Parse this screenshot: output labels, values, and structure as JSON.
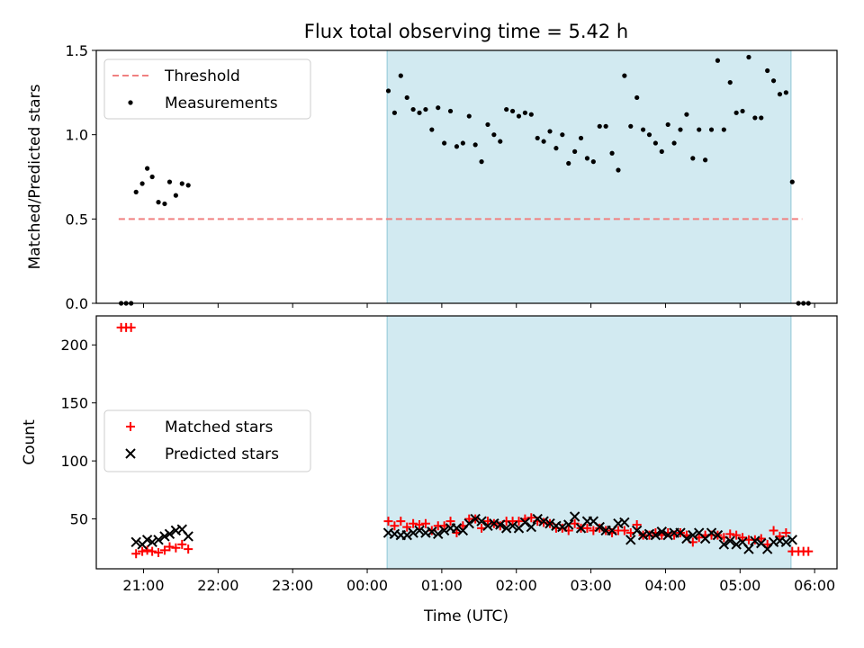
{
  "figure": {
    "title": "Flux total observing time = 5.42 h",
    "x_label": "Time (UTC)",
    "x_ticks": [
      "21:00",
      "22:00",
      "23:00",
      "00:00",
      "01:00",
      "02:00",
      "03:00",
      "04:00",
      "05:00",
      "06:00"
    ],
    "observing_window": {
      "start": "00:16",
      "end": "05:41",
      "color": "#add8e6"
    }
  },
  "chart_data": [
    {
      "type": "scatter",
      "ylabel": "Matched/Predicted stars",
      "ylim": [
        0,
        1.5
      ],
      "y_ticks": [
        "0.0",
        "0.5",
        "1.0",
        "1.5"
      ],
      "grid": false,
      "legend": "top-left",
      "threshold": {
        "name": "Threshold",
        "value": 0.5,
        "x_range": [
          "20:40",
          "05:50"
        ],
        "color": "#f08080",
        "style": "dashed"
      },
      "series": [
        {
          "name": "Measurements",
          "marker": "dot",
          "color": "#000000",
          "points": [
            [
              "20:42",
              0
            ],
            [
              "20:46",
              0
            ],
            [
              "20:50",
              0
            ],
            [
              "20:54",
              0.66
            ],
            [
              "20:59",
              0.71
            ],
            [
              "21:03",
              0.8
            ],
            [
              "21:07",
              0.75
            ],
            [
              "21:12",
              0.6
            ],
            [
              "21:17",
              0.59
            ],
            [
              "21:21",
              0.72
            ],
            [
              "21:26",
              0.64
            ],
            [
              "21:31",
              0.71
            ],
            [
              "21:36",
              0.7
            ],
            [
              "00:17",
              1.26
            ],
            [
              "00:22",
              1.13
            ],
            [
              "00:27",
              1.35
            ],
            [
              "00:32",
              1.22
            ],
            [
              "00:37",
              1.15
            ],
            [
              "00:42",
              1.13
            ],
            [
              "00:47",
              1.15
            ],
            [
              "00:52",
              1.03
            ],
            [
              "00:57",
              1.16
            ],
            [
              "01:02",
              0.95
            ],
            [
              "01:07",
              1.14
            ],
            [
              "01:12",
              0.93
            ],
            [
              "01:17",
              0.95
            ],
            [
              "01:22",
              1.11
            ],
            [
              "01:27",
              0.94
            ],
            [
              "01:32",
              0.84
            ],
            [
              "01:37",
              1.06
            ],
            [
              "01:42",
              1.0
            ],
            [
              "01:47",
              0.96
            ],
            [
              "01:52",
              1.15
            ],
            [
              "01:57",
              1.14
            ],
            [
              "02:02",
              1.11
            ],
            [
              "02:07",
              1.13
            ],
            [
              "02:12",
              1.12
            ],
            [
              "02:17",
              0.98
            ],
            [
              "02:22",
              0.96
            ],
            [
              "02:27",
              1.02
            ],
            [
              "02:32",
              0.92
            ],
            [
              "02:37",
              1.0
            ],
            [
              "02:42",
              0.83
            ],
            [
              "02:47",
              0.9
            ],
            [
              "02:52",
              0.98
            ],
            [
              "02:57",
              0.86
            ],
            [
              "03:02",
              0.84
            ],
            [
              "03:07",
              1.05
            ],
            [
              "03:12",
              1.05
            ],
            [
              "03:17",
              0.89
            ],
            [
              "03:22",
              0.79
            ],
            [
              "03:27",
              1.35
            ],
            [
              "03:32",
              1.05
            ],
            [
              "03:37",
              1.22
            ],
            [
              "03:42",
              1.03
            ],
            [
              "03:47",
              1.0
            ],
            [
              "03:52",
              0.95
            ],
            [
              "03:57",
              0.9
            ],
            [
              "04:02",
              1.06
            ],
            [
              "04:07",
              0.95
            ],
            [
              "04:12",
              1.03
            ],
            [
              "04:17",
              1.12
            ],
            [
              "04:22",
              0.86
            ],
            [
              "04:27",
              1.03
            ],
            [
              "04:32",
              0.85
            ],
            [
              "04:37",
              1.03
            ],
            [
              "04:42",
              1.44
            ],
            [
              "04:47",
              1.03
            ],
            [
              "04:52",
              1.31
            ],
            [
              "04:57",
              1.13
            ],
            [
              "05:02",
              1.14
            ],
            [
              "05:07",
              1.46
            ],
            [
              "05:12",
              1.1
            ],
            [
              "05:17",
              1.1
            ],
            [
              "05:22",
              1.38
            ],
            [
              "05:27",
              1.32
            ],
            [
              "05:32",
              1.24
            ],
            [
              "05:37",
              1.25
            ],
            [
              "05:42",
              0.72
            ],
            [
              "05:47",
              0
            ],
            [
              "05:51",
              0
            ],
            [
              "05:55",
              0
            ]
          ]
        }
      ]
    },
    {
      "type": "scatter",
      "ylabel": "Count",
      "ylim": [
        7,
        225
      ],
      "y_ticks": [
        "50",
        "100",
        "150",
        "200"
      ],
      "grid": false,
      "legend": "center-left",
      "series": [
        {
          "name": "Matched stars",
          "marker": "plus",
          "color": "#ff0000",
          "points": [
            [
              "20:42",
              215
            ],
            [
              "20:46",
              215
            ],
            [
              "20:50",
              215
            ],
            [
              "20:54",
              20
            ],
            [
              "20:59",
              22
            ],
            [
              "21:03",
              23
            ],
            [
              "21:07",
              22
            ],
            [
              "21:12",
              21
            ],
            [
              "21:17",
              23
            ],
            [
              "21:21",
              26
            ],
            [
              "21:26",
              25
            ],
            [
              "21:31",
              28
            ],
            [
              "21:36",
              24
            ],
            [
              "00:17",
              48
            ],
            [
              "00:22",
              44
            ],
            [
              "00:27",
              48
            ],
            [
              "00:32",
              43
            ],
            [
              "00:37",
              46
            ],
            [
              "00:42",
              45
            ],
            [
              "00:47",
              46
            ],
            [
              "00:52",
              40
            ],
            [
              "00:57",
              44
            ],
            [
              "01:02",
              44
            ],
            [
              "01:07",
              48
            ],
            [
              "01:12",
              38
            ],
            [
              "01:17",
              44
            ],
            [
              "01:22",
              50
            ],
            [
              "01:27",
              50
            ],
            [
              "01:32",
              42
            ],
            [
              "01:37",
              48
            ],
            [
              "01:42",
              46
            ],
            [
              "01:47",
              44
            ],
            [
              "01:52",
              48
            ],
            [
              "01:57",
              48
            ],
            [
              "02:02",
              48
            ],
            [
              "02:07",
              50
            ],
            [
              "02:12",
              51
            ],
            [
              "02:17",
              48
            ],
            [
              "02:22",
              47
            ],
            [
              "02:27",
              46
            ],
            [
              "02:32",
              42
            ],
            [
              "02:37",
              42
            ],
            [
              "02:42",
              40
            ],
            [
              "02:47",
              46
            ],
            [
              "02:52",
              42
            ],
            [
              "02:57",
              42
            ],
            [
              "03:02",
              40
            ],
            [
              "03:07",
              42
            ],
            [
              "03:12",
              40
            ],
            [
              "03:17",
              38
            ],
            [
              "03:22",
              40
            ],
            [
              "03:27",
              40
            ],
            [
              "03:32",
              38
            ],
            [
              "03:37",
              45
            ],
            [
              "03:42",
              36
            ],
            [
              "03:47",
              36
            ],
            [
              "03:52",
              38
            ],
            [
              "03:57",
              36
            ],
            [
              "04:02",
              38
            ],
            [
              "04:07",
              36
            ],
            [
              "04:12",
              38
            ],
            [
              "04:17",
              36
            ],
            [
              "04:22",
              30
            ],
            [
              "04:27",
              34
            ],
            [
              "04:32",
              36
            ],
            [
              "04:37",
              36
            ],
            [
              "04:42",
              36
            ],
            [
              "04:47",
              34
            ],
            [
              "04:52",
              37
            ],
            [
              "04:57",
              36
            ],
            [
              "05:02",
              34
            ],
            [
              "05:07",
              32
            ],
            [
              "05:12",
              32
            ],
            [
              "05:17",
              33
            ],
            [
              "05:22",
              28
            ],
            [
              "05:27",
              40
            ],
            [
              "05:32",
              35
            ],
            [
              "05:37",
              38
            ],
            [
              "05:42",
              22
            ],
            [
              "05:47",
              22
            ],
            [
              "05:51",
              22
            ],
            [
              "05:55",
              22
            ]
          ]
        },
        {
          "name": "Predicted stars",
          "marker": "x",
          "color": "#000000",
          "points": [
            [
              "20:54",
              30
            ],
            [
              "20:59",
              28
            ],
            [
              "21:03",
              32
            ],
            [
              "21:07",
              30
            ],
            [
              "21:12",
              32
            ],
            [
              "21:17",
              35
            ],
            [
              "21:21",
              37
            ],
            [
              "21:26",
              40
            ],
            [
              "21:31",
              41
            ],
            [
              "21:36",
              35
            ],
            [
              "00:17",
              38
            ],
            [
              "00:22",
              37
            ],
            [
              "00:27",
              36
            ],
            [
              "00:32",
              36
            ],
            [
              "00:37",
              38
            ],
            [
              "00:42",
              40
            ],
            [
              "00:47",
              38
            ],
            [
              "00:52",
              39
            ],
            [
              "00:57",
              37
            ],
            [
              "01:02",
              40
            ],
            [
              "01:07",
              42
            ],
            [
              "01:12",
              42
            ],
            [
              "01:17",
              40
            ],
            [
              "01:22",
              46
            ],
            [
              "01:27",
              50
            ],
            [
              "01:32",
              48
            ],
            [
              "01:37",
              44
            ],
            [
              "01:42",
              46
            ],
            [
              "01:47",
              45
            ],
            [
              "01:52",
              42
            ],
            [
              "01:57",
              44
            ],
            [
              "02:02",
              42
            ],
            [
              "02:07",
              47
            ],
            [
              "02:12",
              43
            ],
            [
              "02:17",
              50
            ],
            [
              "02:22",
              48
            ],
            [
              "02:27",
              46
            ],
            [
              "02:32",
              44
            ],
            [
              "02:37",
              43
            ],
            [
              "02:42",
              45
            ],
            [
              "02:47",
              52
            ],
            [
              "02:52",
              42
            ],
            [
              "02:57",
              48
            ],
            [
              "03:02",
              48
            ],
            [
              "03:07",
              43
            ],
            [
              "03:12",
              40
            ],
            [
              "03:17",
              40
            ],
            [
              "03:22",
              46
            ],
            [
              "03:27",
              47
            ],
            [
              "03:32",
              32
            ],
            [
              "03:37",
              40
            ],
            [
              "03:42",
              36
            ],
            [
              "03:47",
              37
            ],
            [
              "03:52",
              36
            ],
            [
              "03:57",
              39
            ],
            [
              "04:02",
              36
            ],
            [
              "04:07",
              38
            ],
            [
              "04:12",
              38
            ],
            [
              "04:17",
              33
            ],
            [
              "04:22",
              36
            ],
            [
              "04:27",
              38
            ],
            [
              "04:32",
              33
            ],
            [
              "04:37",
              38
            ],
            [
              "04:42",
              36
            ],
            [
              "04:47",
              28
            ],
            [
              "04:52",
              31
            ],
            [
              "04:57",
              28
            ],
            [
              "05:02",
              30
            ],
            [
              "05:07",
              24
            ],
            [
              "05:12",
              31
            ],
            [
              "05:17",
              29
            ],
            [
              "05:22",
              24
            ],
            [
              "05:27",
              30
            ],
            [
              "05:32",
              31
            ],
            [
              "05:37",
              30
            ],
            [
              "05:42",
              32
            ]
          ]
        }
      ]
    }
  ]
}
